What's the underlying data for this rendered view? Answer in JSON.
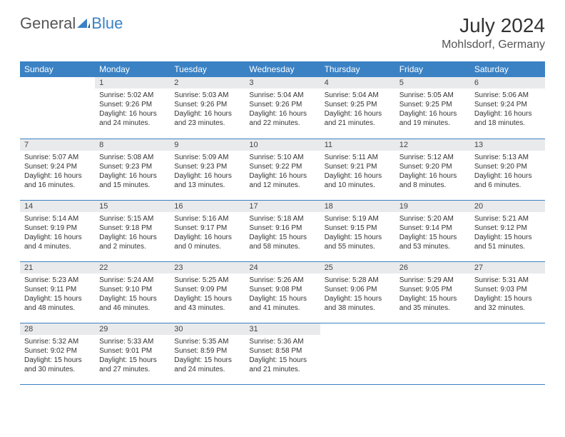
{
  "logo": {
    "text1": "General",
    "text2": "Blue"
  },
  "title": "July 2024",
  "location": "Mohlsdorf, Germany",
  "colors": {
    "header_bg": "#3b82c4",
    "header_text": "#ffffff",
    "daynum_bg": "#e9eaec",
    "rule": "#3b82c4",
    "logo_blue": "#3b82c4"
  },
  "weekdays": [
    "Sunday",
    "Monday",
    "Tuesday",
    "Wednesday",
    "Thursday",
    "Friday",
    "Saturday"
  ],
  "weeks": [
    [
      {
        "n": "",
        "sr": "",
        "ss": "",
        "d1": "",
        "d2": "",
        "empty": true
      },
      {
        "n": "1",
        "sr": "Sunrise: 5:02 AM",
        "ss": "Sunset: 9:26 PM",
        "d1": "Daylight: 16 hours",
        "d2": "and 24 minutes."
      },
      {
        "n": "2",
        "sr": "Sunrise: 5:03 AM",
        "ss": "Sunset: 9:26 PM",
        "d1": "Daylight: 16 hours",
        "d2": "and 23 minutes."
      },
      {
        "n": "3",
        "sr": "Sunrise: 5:04 AM",
        "ss": "Sunset: 9:26 PM",
        "d1": "Daylight: 16 hours",
        "d2": "and 22 minutes."
      },
      {
        "n": "4",
        "sr": "Sunrise: 5:04 AM",
        "ss": "Sunset: 9:25 PM",
        "d1": "Daylight: 16 hours",
        "d2": "and 21 minutes."
      },
      {
        "n": "5",
        "sr": "Sunrise: 5:05 AM",
        "ss": "Sunset: 9:25 PM",
        "d1": "Daylight: 16 hours",
        "d2": "and 19 minutes."
      },
      {
        "n": "6",
        "sr": "Sunrise: 5:06 AM",
        "ss": "Sunset: 9:24 PM",
        "d1": "Daylight: 16 hours",
        "d2": "and 18 minutes."
      }
    ],
    [
      {
        "n": "7",
        "sr": "Sunrise: 5:07 AM",
        "ss": "Sunset: 9:24 PM",
        "d1": "Daylight: 16 hours",
        "d2": "and 16 minutes."
      },
      {
        "n": "8",
        "sr": "Sunrise: 5:08 AM",
        "ss": "Sunset: 9:23 PM",
        "d1": "Daylight: 16 hours",
        "d2": "and 15 minutes."
      },
      {
        "n": "9",
        "sr": "Sunrise: 5:09 AM",
        "ss": "Sunset: 9:23 PM",
        "d1": "Daylight: 16 hours",
        "d2": "and 13 minutes."
      },
      {
        "n": "10",
        "sr": "Sunrise: 5:10 AM",
        "ss": "Sunset: 9:22 PM",
        "d1": "Daylight: 16 hours",
        "d2": "and 12 minutes."
      },
      {
        "n": "11",
        "sr": "Sunrise: 5:11 AM",
        "ss": "Sunset: 9:21 PM",
        "d1": "Daylight: 16 hours",
        "d2": "and 10 minutes."
      },
      {
        "n": "12",
        "sr": "Sunrise: 5:12 AM",
        "ss": "Sunset: 9:20 PM",
        "d1": "Daylight: 16 hours",
        "d2": "and 8 minutes."
      },
      {
        "n": "13",
        "sr": "Sunrise: 5:13 AM",
        "ss": "Sunset: 9:20 PM",
        "d1": "Daylight: 16 hours",
        "d2": "and 6 minutes."
      }
    ],
    [
      {
        "n": "14",
        "sr": "Sunrise: 5:14 AM",
        "ss": "Sunset: 9:19 PM",
        "d1": "Daylight: 16 hours",
        "d2": "and 4 minutes."
      },
      {
        "n": "15",
        "sr": "Sunrise: 5:15 AM",
        "ss": "Sunset: 9:18 PM",
        "d1": "Daylight: 16 hours",
        "d2": "and 2 minutes."
      },
      {
        "n": "16",
        "sr": "Sunrise: 5:16 AM",
        "ss": "Sunset: 9:17 PM",
        "d1": "Daylight: 16 hours",
        "d2": "and 0 minutes."
      },
      {
        "n": "17",
        "sr": "Sunrise: 5:18 AM",
        "ss": "Sunset: 9:16 PM",
        "d1": "Daylight: 15 hours",
        "d2": "and 58 minutes."
      },
      {
        "n": "18",
        "sr": "Sunrise: 5:19 AM",
        "ss": "Sunset: 9:15 PM",
        "d1": "Daylight: 15 hours",
        "d2": "and 55 minutes."
      },
      {
        "n": "19",
        "sr": "Sunrise: 5:20 AM",
        "ss": "Sunset: 9:14 PM",
        "d1": "Daylight: 15 hours",
        "d2": "and 53 minutes."
      },
      {
        "n": "20",
        "sr": "Sunrise: 5:21 AM",
        "ss": "Sunset: 9:12 PM",
        "d1": "Daylight: 15 hours",
        "d2": "and 51 minutes."
      }
    ],
    [
      {
        "n": "21",
        "sr": "Sunrise: 5:23 AM",
        "ss": "Sunset: 9:11 PM",
        "d1": "Daylight: 15 hours",
        "d2": "and 48 minutes."
      },
      {
        "n": "22",
        "sr": "Sunrise: 5:24 AM",
        "ss": "Sunset: 9:10 PM",
        "d1": "Daylight: 15 hours",
        "d2": "and 46 minutes."
      },
      {
        "n": "23",
        "sr": "Sunrise: 5:25 AM",
        "ss": "Sunset: 9:09 PM",
        "d1": "Daylight: 15 hours",
        "d2": "and 43 minutes."
      },
      {
        "n": "24",
        "sr": "Sunrise: 5:26 AM",
        "ss": "Sunset: 9:08 PM",
        "d1": "Daylight: 15 hours",
        "d2": "and 41 minutes."
      },
      {
        "n": "25",
        "sr": "Sunrise: 5:28 AM",
        "ss": "Sunset: 9:06 PM",
        "d1": "Daylight: 15 hours",
        "d2": "and 38 minutes."
      },
      {
        "n": "26",
        "sr": "Sunrise: 5:29 AM",
        "ss": "Sunset: 9:05 PM",
        "d1": "Daylight: 15 hours",
        "d2": "and 35 minutes."
      },
      {
        "n": "27",
        "sr": "Sunrise: 5:31 AM",
        "ss": "Sunset: 9:03 PM",
        "d1": "Daylight: 15 hours",
        "d2": "and 32 minutes."
      }
    ],
    [
      {
        "n": "28",
        "sr": "Sunrise: 5:32 AM",
        "ss": "Sunset: 9:02 PM",
        "d1": "Daylight: 15 hours",
        "d2": "and 30 minutes."
      },
      {
        "n": "29",
        "sr": "Sunrise: 5:33 AM",
        "ss": "Sunset: 9:01 PM",
        "d1": "Daylight: 15 hours",
        "d2": "and 27 minutes."
      },
      {
        "n": "30",
        "sr": "Sunrise: 5:35 AM",
        "ss": "Sunset: 8:59 PM",
        "d1": "Daylight: 15 hours",
        "d2": "and 24 minutes."
      },
      {
        "n": "31",
        "sr": "Sunrise: 5:36 AM",
        "ss": "Sunset: 8:58 PM",
        "d1": "Daylight: 15 hours",
        "d2": "and 21 minutes."
      },
      {
        "n": "",
        "sr": "",
        "ss": "",
        "d1": "",
        "d2": "",
        "empty": true
      },
      {
        "n": "",
        "sr": "",
        "ss": "",
        "d1": "",
        "d2": "",
        "empty": true
      },
      {
        "n": "",
        "sr": "",
        "ss": "",
        "d1": "",
        "d2": "",
        "empty": true
      }
    ]
  ]
}
